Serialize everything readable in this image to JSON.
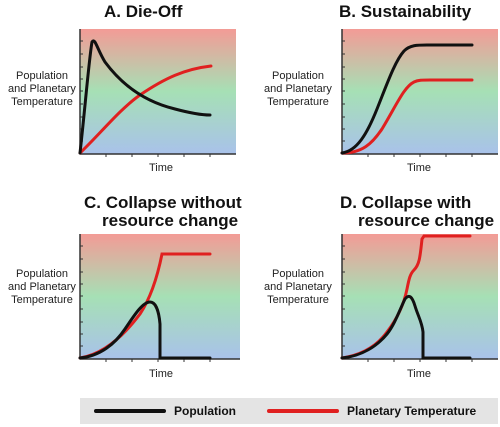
{
  "legend": {
    "population_label": "Population",
    "temperature_label": "Planetary Temperature",
    "population_color": "#111111",
    "temperature_color": "#e02020"
  },
  "panels": [
    {
      "title": [
        "A. Die-Off"
      ],
      "ylabel": [
        "Population",
        "and Planetary",
        "Temperature"
      ],
      "xlabel": "Time"
    },
    {
      "title": [
        "B. Sustainability"
      ],
      "ylabel": [
        "Population",
        "and Planetary",
        "Temperature"
      ],
      "xlabel": "Time"
    },
    {
      "title": [
        "C. Collapse without",
        "resource change"
      ],
      "ylabel": [
        "Population",
        "and Planetary",
        "Temperature"
      ],
      "xlabel": "Time"
    },
    {
      "title": [
        "D. Collapse with",
        "resource change"
      ],
      "ylabel": [
        "Population",
        "and Planetary",
        "Temperature"
      ],
      "xlabel": "Time"
    }
  ],
  "colors": {
    "gradient_top": "#f39b96",
    "gradient_mid": "#a6e0b5",
    "gradient_bottom": "#a9c2ea"
  }
}
